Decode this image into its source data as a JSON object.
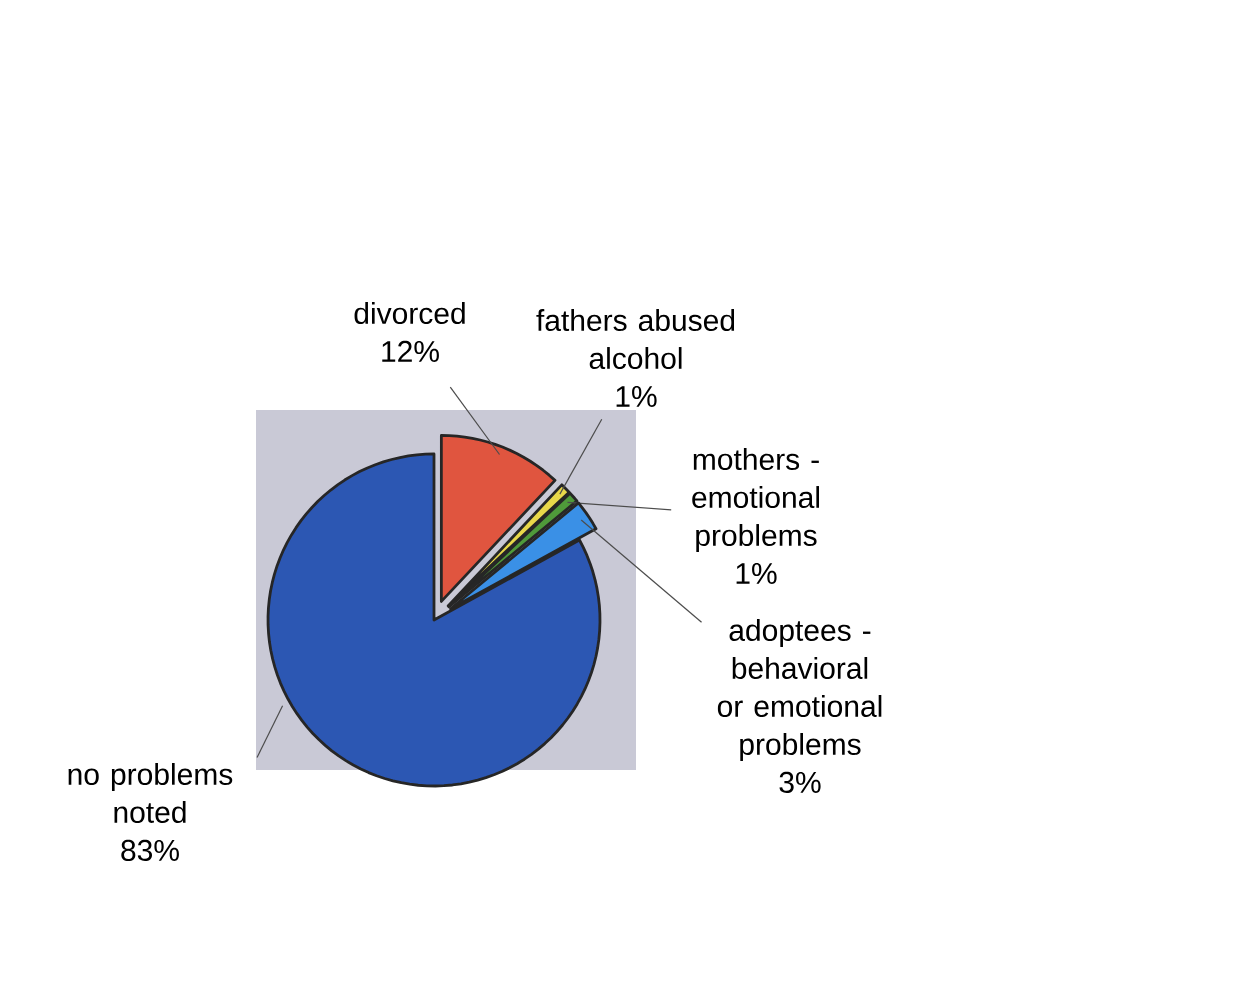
{
  "chart_data": {
    "type": "pie",
    "categories": [
      "divorced",
      "fathers abused alcohol",
      "mothers - emotional problems",
      "adoptees - behavioral or emotional problems",
      "no problems noted"
    ],
    "values": [
      12,
      1,
      1,
      3,
      83
    ],
    "colors": [
      "#e0553f",
      "#e8d84a",
      "#4f9a3a",
      "#3a90e6",
      "#2c57b3"
    ],
    "value_labels": [
      "12%",
      "1%",
      "1%",
      "3%",
      "83%"
    ]
  }
}
